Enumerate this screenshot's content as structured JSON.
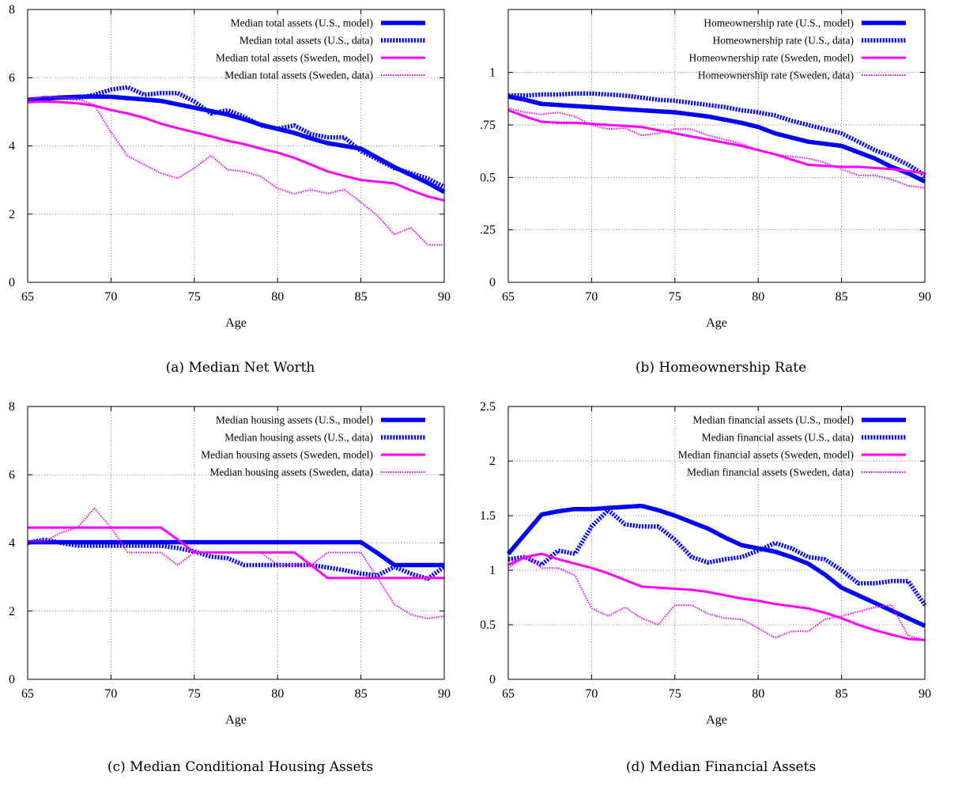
{
  "chart_data": [
    {
      "type": "line",
      "caption": "(a) Median Net Worth",
      "xlabel": "Age",
      "ylabel": "",
      "xlim": [
        65,
        90
      ],
      "ylim": [
        0,
        8
      ],
      "xticks": [
        65,
        70,
        75,
        80,
        85,
        90
      ],
      "yticks": [
        "0",
        "2",
        "4",
        "6",
        "8"
      ],
      "ytick_values": [
        0,
        2,
        4,
        6,
        8
      ],
      "grid": true,
      "legend_position": "top-right",
      "series": [
        {
          "name": "Median total assets (U.S., model)",
          "style": "solid-thick",
          "color": "#0000ff",
          "x": [
            65,
            66,
            67,
            68,
            69,
            70,
            71,
            72,
            73,
            74,
            75,
            76,
            77,
            78,
            79,
            80,
            81,
            82,
            83,
            84,
            85,
            86,
            87,
            88,
            89,
            90
          ],
          "y": [
            5.35,
            5.38,
            5.42,
            5.44,
            5.45,
            5.44,
            5.4,
            5.36,
            5.32,
            5.22,
            5.12,
            5.02,
            4.92,
            4.78,
            4.62,
            4.5,
            4.38,
            4.22,
            4.08,
            4.0,
            3.92,
            3.65,
            3.38,
            3.15,
            2.92,
            2.65
          ]
        },
        {
          "name": "Median total assets (U.S., data)",
          "style": "dotted-thick",
          "color": "#0000ff",
          "x": [
            65,
            66,
            67,
            68,
            69,
            70,
            71,
            72,
            73,
            74,
            75,
            76,
            77,
            78,
            79,
            80,
            81,
            82,
            83,
            84,
            85,
            86,
            87,
            88,
            89,
            90
          ],
          "y": [
            5.35,
            5.4,
            5.42,
            5.4,
            5.5,
            5.65,
            5.72,
            5.5,
            5.55,
            5.55,
            5.3,
            4.95,
            5.05,
            4.85,
            4.6,
            4.5,
            4.6,
            4.35,
            4.25,
            4.25,
            3.85,
            3.6,
            3.35,
            3.2,
            3.05,
            2.8
          ]
        },
        {
          "name": "Median total assets (Sweden, model)",
          "style": "solid",
          "color": "#ff00ff",
          "x": [
            65,
            66,
            67,
            68,
            69,
            70,
            71,
            72,
            73,
            74,
            75,
            76,
            77,
            78,
            79,
            80,
            81,
            82,
            83,
            84,
            85,
            86,
            87,
            88,
            89,
            90
          ],
          "y": [
            5.28,
            5.3,
            5.28,
            5.25,
            5.18,
            5.05,
            4.95,
            4.82,
            4.65,
            4.52,
            4.4,
            4.28,
            4.15,
            4.05,
            3.92,
            3.8,
            3.65,
            3.45,
            3.25,
            3.12,
            3.0,
            2.95,
            2.9,
            2.7,
            2.52,
            2.4
          ]
        },
        {
          "name": "Median total assets (Sweden, data)",
          "style": "dotted",
          "color": "#ff00ff",
          "x": [
            65,
            66,
            67,
            68,
            69,
            70,
            71,
            72,
            73,
            74,
            75,
            76,
            77,
            78,
            79,
            80,
            81,
            82,
            83,
            84,
            85,
            86,
            87,
            88,
            89,
            90
          ],
          "y": [
            5.35,
            5.45,
            5.42,
            5.38,
            5.2,
            4.4,
            3.7,
            3.45,
            3.2,
            3.05,
            3.35,
            3.72,
            3.3,
            3.25,
            3.1,
            2.75,
            2.6,
            2.72,
            2.6,
            2.72,
            2.35,
            1.95,
            1.4,
            1.6,
            1.1,
            1.1
          ]
        }
      ]
    },
    {
      "type": "line",
      "caption": "(b) Homeownership Rate",
      "xlabel": "Age",
      "ylabel": "",
      "xlim": [
        65,
        90
      ],
      "ylim": [
        0,
        1.3
      ],
      "xticks": [
        65,
        70,
        75,
        80,
        85,
        90
      ],
      "yticks": [
        "0",
        "0.25",
        "0.5",
        "0.75",
        "1"
      ],
      "ytick_values": [
        0,
        0.25,
        0.5,
        0.75,
        1
      ],
      "grid": true,
      "legend_position": "top-right",
      "series": [
        {
          "name": "Homeownership rate (U.S., model)",
          "style": "solid-thick",
          "color": "#0000ff",
          "x": [
            65,
            66,
            67,
            68,
            69,
            70,
            71,
            72,
            73,
            74,
            75,
            76,
            77,
            78,
            79,
            80,
            81,
            82,
            83,
            84,
            85,
            86,
            87,
            88,
            89,
            90
          ],
          "y": [
            0.885,
            0.87,
            0.85,
            0.845,
            0.84,
            0.835,
            0.83,
            0.825,
            0.82,
            0.815,
            0.81,
            0.8,
            0.79,
            0.775,
            0.76,
            0.74,
            0.71,
            0.69,
            0.67,
            0.66,
            0.65,
            0.62,
            0.59,
            0.55,
            0.52,
            0.48
          ]
        },
        {
          "name": "Homeownership rate (U.S., data)",
          "style": "dotted-thick",
          "color": "#0000ff",
          "x": [
            65,
            66,
            67,
            68,
            69,
            70,
            71,
            72,
            73,
            74,
            75,
            76,
            77,
            78,
            79,
            80,
            81,
            82,
            83,
            84,
            85,
            86,
            87,
            88,
            89,
            90
          ],
          "y": [
            0.89,
            0.89,
            0.895,
            0.895,
            0.9,
            0.9,
            0.895,
            0.89,
            0.88,
            0.87,
            0.865,
            0.855,
            0.845,
            0.835,
            0.82,
            0.81,
            0.795,
            0.77,
            0.75,
            0.73,
            0.71,
            0.67,
            0.63,
            0.6,
            0.56,
            0.51
          ]
        },
        {
          "name": "Homeownership rate (Sweden, model)",
          "style": "solid",
          "color": "#ff00ff",
          "x": [
            65,
            66,
            67,
            68,
            69,
            70,
            71,
            72,
            73,
            74,
            75,
            76,
            77,
            78,
            79,
            80,
            81,
            82,
            83,
            84,
            85,
            86,
            87,
            88,
            89,
            90
          ],
          "y": [
            0.82,
            0.79,
            0.765,
            0.76,
            0.76,
            0.755,
            0.75,
            0.745,
            0.74,
            0.725,
            0.71,
            0.695,
            0.68,
            0.665,
            0.65,
            0.63,
            0.61,
            0.585,
            0.56,
            0.555,
            0.55,
            0.55,
            0.545,
            0.54,
            0.53,
            0.52
          ]
        },
        {
          "name": "Homeownership rate (Sweden, data)",
          "style": "dotted",
          "color": "#ff00ff",
          "x": [
            65,
            66,
            67,
            68,
            69,
            70,
            71,
            72,
            73,
            74,
            75,
            76,
            77,
            78,
            79,
            80,
            81,
            82,
            83,
            84,
            85,
            86,
            87,
            88,
            89,
            90
          ],
          "y": [
            0.83,
            0.81,
            0.8,
            0.81,
            0.79,
            0.75,
            0.73,
            0.735,
            0.7,
            0.71,
            0.73,
            0.73,
            0.7,
            0.68,
            0.66,
            0.63,
            0.61,
            0.6,
            0.59,
            0.57,
            0.54,
            0.51,
            0.51,
            0.49,
            0.46,
            0.45
          ]
        }
      ]
    },
    {
      "type": "line",
      "caption": "(c) Median Conditional Housing Assets",
      "xlabel": "Age",
      "ylabel": "",
      "xlim": [
        65,
        90
      ],
      "ylim": [
        0,
        8
      ],
      "xticks": [
        65,
        70,
        75,
        80,
        85,
        90
      ],
      "yticks": [
        "0",
        "2",
        "4",
        "6",
        "8"
      ],
      "ytick_values": [
        0,
        2,
        4,
        6,
        8
      ],
      "grid": true,
      "legend_position": "top-right",
      "series": [
        {
          "name": "Median housing assets (U.S., model)",
          "style": "solid-thick",
          "color": "#0000ff",
          "x": [
            65,
            66,
            67,
            68,
            69,
            70,
            71,
            72,
            73,
            74,
            75,
            76,
            77,
            78,
            79,
            80,
            81,
            82,
            83,
            84,
            85,
            86,
            87,
            88,
            89,
            90
          ],
          "y": [
            4.02,
            4.02,
            4.02,
            4.02,
            4.02,
            4.02,
            4.02,
            4.02,
            4.02,
            4.02,
            4.02,
            4.02,
            4.02,
            4.02,
            4.02,
            4.02,
            4.02,
            4.02,
            4.02,
            4.02,
            4.02,
            3.7,
            3.35,
            3.35,
            3.35,
            3.35
          ]
        },
        {
          "name": "Median housing assets (U.S., data)",
          "style": "dotted-thick",
          "color": "#0000ff",
          "x": [
            65,
            66,
            67,
            68,
            69,
            70,
            71,
            72,
            73,
            74,
            75,
            76,
            77,
            78,
            79,
            80,
            81,
            82,
            83,
            84,
            85,
            86,
            87,
            88,
            89,
            90
          ],
          "y": [
            4.0,
            4.1,
            4.0,
            3.92,
            3.92,
            3.92,
            3.92,
            3.92,
            3.92,
            3.85,
            3.75,
            3.6,
            3.55,
            3.35,
            3.35,
            3.35,
            3.35,
            3.35,
            3.28,
            3.2,
            3.1,
            3.05,
            3.3,
            3.1,
            2.95,
            3.3
          ]
        },
        {
          "name": "Median housing assets (Sweden, model)",
          "style": "solid",
          "color": "#ff00ff",
          "x": [
            65,
            66,
            67,
            68,
            69,
            70,
            71,
            72,
            73,
            74,
            75,
            76,
            77,
            78,
            79,
            80,
            81,
            82,
            83,
            84,
            85,
            86,
            87,
            88,
            89,
            90
          ],
          "y": [
            4.45,
            4.45,
            4.45,
            4.45,
            4.45,
            4.45,
            4.45,
            4.45,
            4.45,
            4.1,
            3.72,
            3.72,
            3.72,
            3.72,
            3.72,
            3.72,
            3.72,
            3.35,
            2.97,
            2.97,
            2.97,
            2.97,
            2.97,
            2.97,
            2.97,
            2.97
          ]
        },
        {
          "name": "Median housing assets (Sweden, data)",
          "style": "dotted",
          "color": "#ff00ff",
          "x": [
            65,
            66,
            67,
            68,
            69,
            70,
            71,
            72,
            73,
            74,
            75,
            76,
            77,
            78,
            79,
            80,
            81,
            82,
            83,
            84,
            85,
            86,
            87,
            88,
            89,
            90
          ],
          "y": [
            4.05,
            4.05,
            4.3,
            4.45,
            5.02,
            4.45,
            3.72,
            3.72,
            3.72,
            3.35,
            3.72,
            3.72,
            3.72,
            3.72,
            3.72,
            3.35,
            3.35,
            3.35,
            3.72,
            3.72,
            3.72,
            2.97,
            2.2,
            1.9,
            1.78,
            1.85
          ]
        }
      ]
    },
    {
      "type": "line",
      "caption": "(d) Median Financial Assets",
      "xlabel": "Age",
      "ylabel": "",
      "xlim": [
        65,
        90
      ],
      "ylim": [
        0,
        2.5
      ],
      "xticks": [
        65,
        70,
        75,
        80,
        85,
        90
      ],
      "yticks": [
        "0",
        "0.5",
        "1",
        "1.5",
        "2",
        "2.5"
      ],
      "ytick_values": [
        0,
        0.5,
        1,
        1.5,
        2,
        2.5
      ],
      "grid": true,
      "legend_position": "top-right",
      "series": [
        {
          "name": "Median financial assets (U.S., model)",
          "style": "solid-thick",
          "color": "#0000ff",
          "x": [
            65,
            66,
            67,
            68,
            69,
            70,
            71,
            72,
            73,
            74,
            75,
            76,
            77,
            78,
            79,
            80,
            81,
            82,
            83,
            84,
            85,
            86,
            87,
            88,
            89,
            90
          ],
          "y": [
            1.15,
            1.33,
            1.51,
            1.54,
            1.56,
            1.56,
            1.57,
            1.58,
            1.59,
            1.55,
            1.5,
            1.44,
            1.38,
            1.3,
            1.23,
            1.2,
            1.17,
            1.12,
            1.06,
            0.96,
            0.84,
            0.77,
            0.7,
            0.63,
            0.56,
            0.49
          ]
        },
        {
          "name": "Median financial assets (U.S., data)",
          "style": "dotted-thick",
          "color": "#0000ff",
          "x": [
            65,
            66,
            67,
            68,
            69,
            70,
            71,
            72,
            73,
            74,
            75,
            76,
            77,
            78,
            79,
            80,
            81,
            82,
            83,
            84,
            85,
            86,
            87,
            88,
            89,
            90
          ],
          "y": [
            1.1,
            1.12,
            1.05,
            1.18,
            1.15,
            1.4,
            1.55,
            1.42,
            1.4,
            1.4,
            1.28,
            1.12,
            1.07,
            1.1,
            1.12,
            1.18,
            1.25,
            1.2,
            1.12,
            1.1,
            1.0,
            0.88,
            0.88,
            0.9,
            0.9,
            0.68
          ]
        },
        {
          "name": "Median financial assets (Sweden, model)",
          "style": "solid",
          "color": "#ff00ff",
          "x": [
            65,
            66,
            67,
            68,
            69,
            70,
            71,
            72,
            73,
            74,
            75,
            76,
            77,
            78,
            79,
            80,
            81,
            82,
            83,
            84,
            85,
            86,
            87,
            88,
            89,
            90
          ],
          "y": [
            1.05,
            1.12,
            1.15,
            1.1,
            1.06,
            1.02,
            0.97,
            0.91,
            0.85,
            0.84,
            0.83,
            0.82,
            0.8,
            0.77,
            0.74,
            0.72,
            0.69,
            0.67,
            0.65,
            0.61,
            0.56,
            0.5,
            0.45,
            0.41,
            0.37,
            0.36
          ]
        },
        {
          "name": "Median financial assets (Sweden, data)",
          "style": "dotted",
          "color": "#ff00ff",
          "x": [
            65,
            66,
            67,
            68,
            69,
            70,
            71,
            72,
            73,
            74,
            75,
            76,
            77,
            78,
            79,
            80,
            81,
            82,
            83,
            84,
            85,
            86,
            87,
            88,
            89,
            90
          ],
          "y": [
            1.02,
            1.12,
            1.02,
            1.02,
            0.95,
            0.65,
            0.58,
            0.66,
            0.56,
            0.5,
            0.68,
            0.68,
            0.6,
            0.56,
            0.55,
            0.47,
            0.38,
            0.44,
            0.44,
            0.55,
            0.58,
            0.62,
            0.66,
            0.68,
            0.4,
            0.36
          ]
        }
      ]
    }
  ]
}
